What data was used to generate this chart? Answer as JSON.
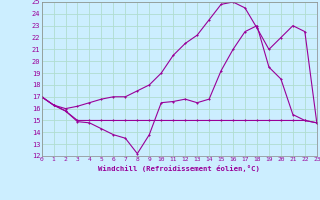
{
  "xlabel": "Windchill (Refroidissement éolien,°C)",
  "bg_color": "#cceeff",
  "grid_color": "#b0ddd0",
  "line_color": "#990099",
  "xlim": [
    0,
    23
  ],
  "ylim": [
    12,
    25
  ],
  "xticks": [
    0,
    1,
    2,
    3,
    4,
    5,
    6,
    7,
    8,
    9,
    10,
    11,
    12,
    13,
    14,
    15,
    16,
    17,
    18,
    19,
    20,
    21,
    22,
    23
  ],
  "yticks": [
    12,
    13,
    14,
    15,
    16,
    17,
    18,
    19,
    20,
    21,
    22,
    23,
    24,
    25
  ],
  "line1_x": [
    0,
    1,
    2,
    3,
    4,
    5,
    6,
    7,
    8,
    9,
    10,
    11,
    12,
    13,
    14,
    15,
    16,
    17,
    18,
    19,
    20,
    21,
    22,
    23
  ],
  "line1_y": [
    17.0,
    16.3,
    15.8,
    14.9,
    14.8,
    14.3,
    13.8,
    13.5,
    12.2,
    13.8,
    16.5,
    16.6,
    16.8,
    16.5,
    16.8,
    19.2,
    21.0,
    22.5,
    23.0,
    19.5,
    18.5,
    15.5,
    15.0,
    14.8
  ],
  "line2_x": [
    0,
    1,
    2,
    3,
    4,
    5,
    6,
    7,
    8,
    9,
    10,
    11,
    12,
    13,
    14,
    15,
    16,
    17,
    18,
    19,
    20,
    21,
    22,
    23
  ],
  "line2_y": [
    17.0,
    16.3,
    15.8,
    15.0,
    15.0,
    15.0,
    15.0,
    15.0,
    15.0,
    15.0,
    15.0,
    15.0,
    15.0,
    15.0,
    15.0,
    15.0,
    15.0,
    15.0,
    15.0,
    15.0,
    15.0,
    15.0,
    15.0,
    14.8
  ],
  "line3_x": [
    0,
    1,
    2,
    3,
    4,
    5,
    6,
    7,
    8,
    9,
    10,
    11,
    12,
    13,
    14,
    15,
    16,
    17,
    18,
    19,
    20,
    21,
    22,
    23
  ],
  "line3_y": [
    17.0,
    16.3,
    16.0,
    16.2,
    16.5,
    16.8,
    17.0,
    17.0,
    17.5,
    18.0,
    19.0,
    20.5,
    21.5,
    22.2,
    23.5,
    24.8,
    25.0,
    24.5,
    22.8,
    21.0,
    22.0,
    23.0,
    22.5,
    14.8
  ]
}
